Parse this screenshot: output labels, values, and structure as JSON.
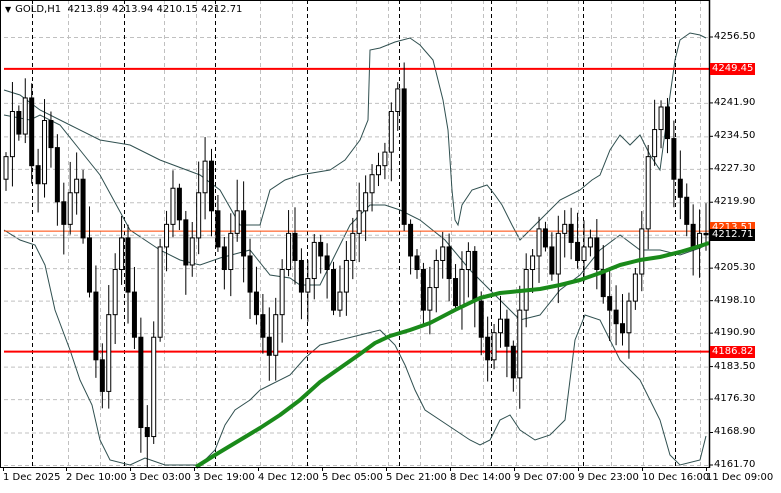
{
  "chart_header": {
    "symbol": "GOLD,H1",
    "ohlc": "4213.89 4213.94 4210.15 4212.71",
    "menu_arrow": "▼"
  },
  "colors": {
    "background": "#ffffff",
    "grid": "#c0c0c0",
    "day_separator": "#000000",
    "level_line": "#ff0000",
    "bid_line": "#ff4500",
    "ask_line": "#c0c0c0",
    "moving_average": "#1a8a1a",
    "bollinger": "#2f4f4f",
    "bull_candle_fill": "#ffffff",
    "bear_candle_fill": "#000000"
  },
  "price_axis": {
    "ticks": [
      "4256.50",
      "4241.90",
      "4234.50",
      "4227.30",
      "4219.90",
      "4205.30",
      "4198.10",
      "4190.90",
      "4183.50",
      "4176.30",
      "4168.90",
      "4161.70"
    ],
    "levels": [
      {
        "label": "4249.45",
        "type": "resistance"
      },
      {
        "label": "4186.82",
        "type": "support"
      }
    ],
    "current_price": "4212.71",
    "bid_label_partial": "4213.51"
  },
  "time_axis": {
    "ticks": [
      "1 Dec 2025",
      "2 Dec 10:00",
      "3 Dec 03:00",
      "3 Dec 19:00",
      "4 Dec 12:00",
      "5 Dec 05:00",
      "5 Dec 21:00",
      "8 Dec 14:00",
      "9 Dec 07:00",
      "9 Dec 23:00",
      "10 Dec 16:00",
      "11 Dec 09:00"
    ]
  },
  "chart_data": {
    "type": "candlestick",
    "title": "GOLD,H1",
    "xlabel": "",
    "ylabel": "",
    "ylim": [
      4161.7,
      4256.5
    ],
    "grid": true,
    "indicators": [
      "Moving Average (green, thick)",
      "Bollinger Bands (dark slate)"
    ],
    "horizontal_levels": [
      4249.45,
      4186.82
    ],
    "last": {
      "open": 4213.89,
      "high": 4213.94,
      "low": 4210.15,
      "close": 4212.71
    },
    "candles_close": [
      4230,
      4240,
      4235,
      4243,
      4228,
      4224,
      4238,
      4232,
      4220,
      4215,
      4222,
      4225,
      4212,
      4200,
      4185,
      4178,
      4195,
      4205,
      4212,
      4200,
      4190,
      4170,
      4168,
      4190,
      4210,
      4215,
      4223,
      4216,
      4206,
      4212,
      4222,
      4229,
      4218,
      4210,
      4205,
      4213,
      4218,
      4208,
      4200,
      4195,
      4190,
      4186,
      4195,
      4205,
      4213,
      4207,
      4200,
      4203,
      4211,
      4208,
      4205,
      4196,
      4200,
      4207,
      4213,
      4218,
      4222,
      4226,
      4228,
      4231,
      4240,
      4245,
      4215,
      4208,
      4205,
      4196,
      4201,
      4207,
      4210,
      4203,
      4197,
      4205,
      4209,
      4198,
      4190,
      4185,
      4191,
      4194,
      4188,
      4181,
      4196,
      4205,
      4208,
      4214,
      4210,
      4204,
      4213,
      4215,
      4211,
      4207,
      4210,
      4212,
      4205,
      4199,
      4196,
      4193,
      4191,
      4198,
      4204,
      4214,
      4230,
      4236,
      4241,
      4234,
      4225,
      4221,
      4215,
      4210,
      4213,
      4212.71
    ],
    "moving_average_endpoints": {
      "start": [
        196,
        4161.7
      ],
      "end": [
        709,
        4210.5
      ]
    }
  }
}
